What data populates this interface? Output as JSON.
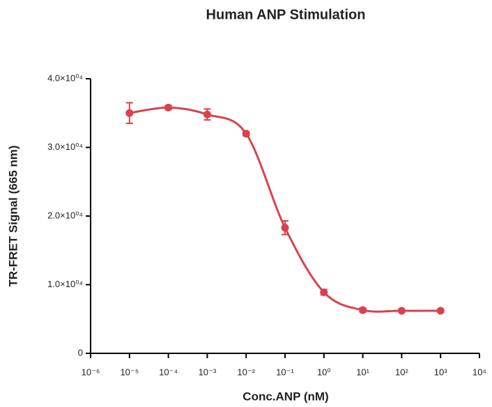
{
  "chart_data": {
    "type": "scatter-curve",
    "title": "Human ANP Stimulation",
    "x_label": "Conc.ANP (nM)",
    "y_label": "TR-FRET Signal (665 nm)",
    "log_x": true,
    "color": "#d9414d",
    "x": [
      1e-05,
      0.0001,
      0.001,
      0.01,
      0.1,
      1,
      10,
      100,
      1000
    ],
    "values": [
      35000,
      35800,
      34800,
      32000,
      18300,
      8900,
      6300,
      6200,
      6200
    ],
    "errors": [
      1500,
      300,
      800,
      300,
      1000,
      400,
      300,
      200,
      200
    ],
    "xlim": [
      1e-06,
      10000
    ],
    "xticks": [
      {
        "value": 1e-06,
        "label": "10⁻⁶"
      },
      {
        "value": 1e-05,
        "label": "10⁻⁵"
      },
      {
        "value": 0.0001,
        "label": "10⁻⁴"
      },
      {
        "value": 0.001,
        "label": "10⁻³"
      },
      {
        "value": 0.01,
        "label": "10⁻²"
      },
      {
        "value": 0.1,
        "label": "10⁻¹"
      },
      {
        "value": 1,
        "label": "10⁰"
      },
      {
        "value": 10,
        "label": "10¹"
      },
      {
        "value": 100,
        "label": "10²"
      },
      {
        "value": 1000,
        "label": "10³"
      },
      {
        "value": 10000,
        "label": "10⁴"
      }
    ],
    "ylim": [
      0,
      40000
    ],
    "yticks": [
      0,
      {
        "value": 10000,
        "label": "1.0×10⁰⁴"
      },
      {
        "value": 20000,
        "label": "2.0×10⁰⁴"
      },
      {
        "value": 30000,
        "label": "3.0×10⁰⁴"
      },
      {
        "value": 40000,
        "label": "4.0×10⁰⁴"
      }
    ]
  }
}
